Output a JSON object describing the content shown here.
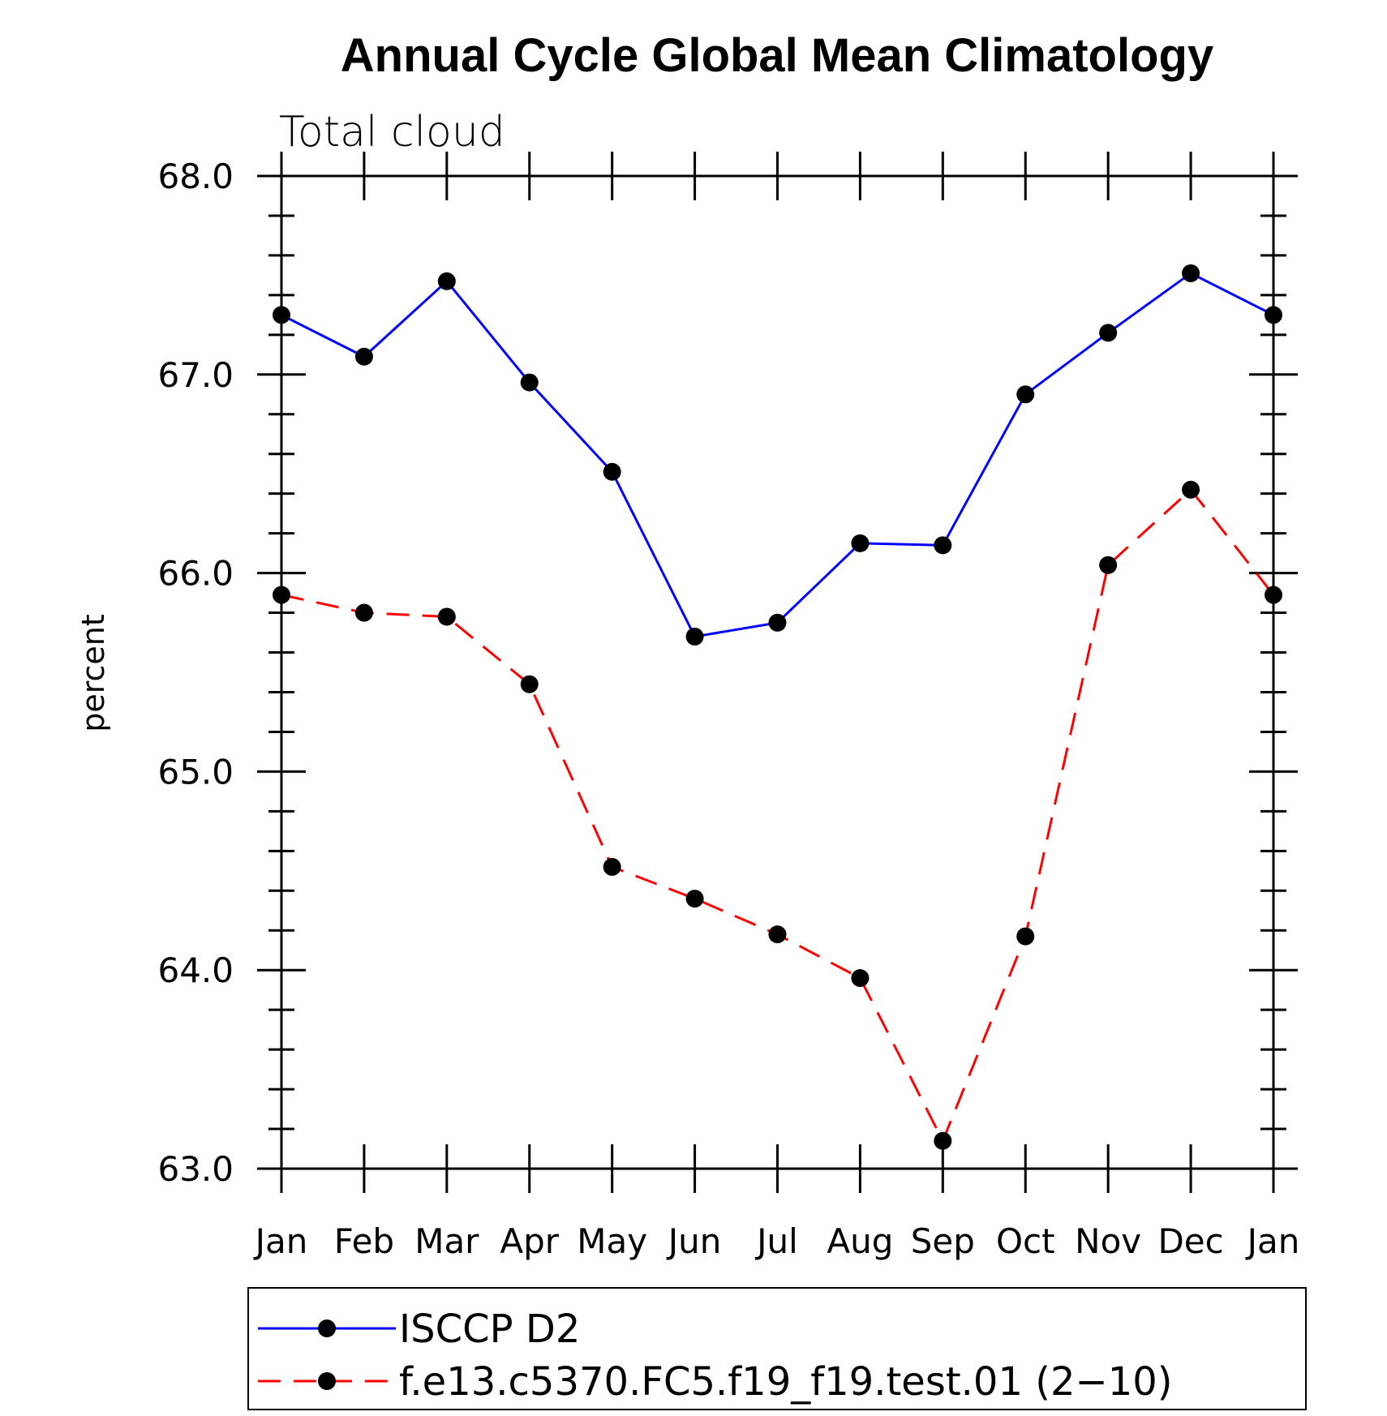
{
  "chart_data": {
    "type": "line",
    "title": "Annual Cycle Global Mean Climatology",
    "subtitle": "Total cloud",
    "xlabel": "",
    "ylabel": "percent",
    "categories": [
      "Jan",
      "Feb",
      "Mar",
      "Apr",
      "May",
      "Jun",
      "Jul",
      "Aug",
      "Sep",
      "Oct",
      "Nov",
      "Dec",
      "Jan"
    ],
    "ylim": [
      63.0,
      68.0
    ],
    "yticks": [
      "63.0",
      "64.0",
      "65.0",
      "66.0",
      "67.0",
      "68.0"
    ],
    "grid": false,
    "legend_position": "bottom",
    "series": [
      {
        "name": "ISCCP D2",
        "color": "#0000ff",
        "line_style": "solid",
        "marker": "filled-circle",
        "values": [
          67.3,
          67.09,
          67.47,
          66.96,
          66.51,
          65.68,
          65.75,
          66.15,
          66.14,
          66.9,
          67.21,
          67.51,
          67.3
        ]
      },
      {
        "name": "f.e13.c5370.FC5.f19_f19.test.01 (2−10)",
        "color": "#ff0000",
        "line_style": "dashed",
        "marker": "filled-circle",
        "values": [
          65.89,
          65.8,
          65.78,
          65.44,
          64.52,
          64.36,
          64.18,
          63.96,
          63.14,
          64.17,
          66.04,
          66.42,
          65.89
        ]
      }
    ]
  }
}
